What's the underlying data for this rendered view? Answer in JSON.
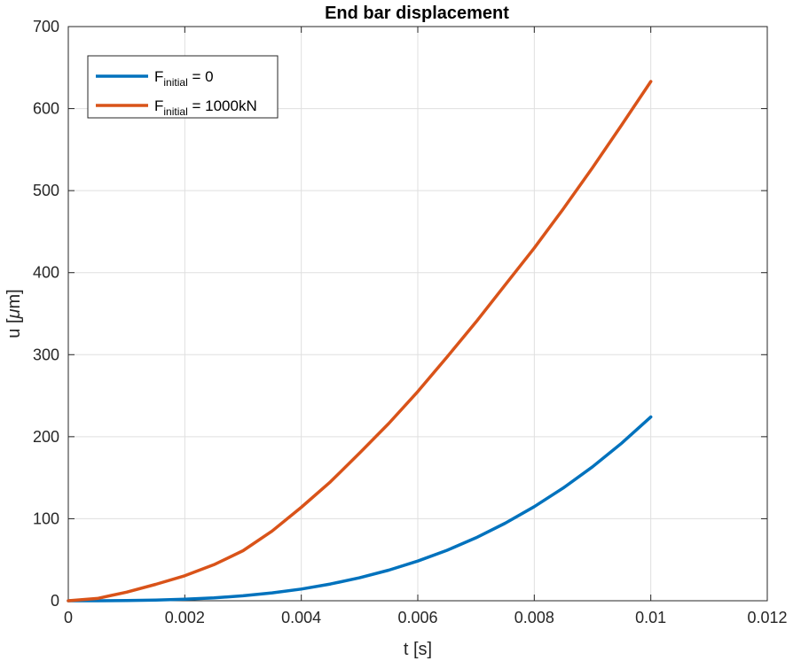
{
  "chart_data": {
    "type": "line",
    "title": "End bar displacement",
    "xlabel": "t [s]",
    "ylabel_prefix": "u [",
    "ylabel_mu": "μ",
    "ylabel_suffix": "m]",
    "xlim": [
      0,
      0.012
    ],
    "ylim": [
      0,
      700
    ],
    "xticks": [
      0,
      0.002,
      0.004,
      0.006,
      0.008,
      0.01,
      0.012
    ],
    "xtick_labels": [
      "0",
      "0.002",
      "0.004",
      "0.006",
      "0.008",
      "0.01",
      "0.012"
    ],
    "yticks": [
      0,
      100,
      200,
      300,
      400,
      500,
      600,
      700
    ],
    "ytick_labels": [
      "0",
      "100",
      "200",
      "300",
      "400",
      "500",
      "600",
      "700"
    ],
    "grid": true,
    "legend_position": "top-left",
    "x": [
      0,
      0.0005,
      0.001,
      0.0015,
      0.002,
      0.0025,
      0.003,
      0.0035,
      0.004,
      0.0045,
      0.005,
      0.0055,
      0.006,
      0.0065,
      0.007,
      0.0075,
      0.008,
      0.0085,
      0.009,
      0.0095,
      0.01
    ],
    "series": [
      {
        "name_main": "F",
        "name_sub": "initial",
        "name_rest": " = 0",
        "color": "#0072BD",
        "values": [
          0,
          0.03,
          0.22,
          0.76,
          1.8,
          3.5,
          6.0,
          9.6,
          14.3,
          20.4,
          28.0,
          37.3,
          48.4,
          61.5,
          76.8,
          94.5,
          114.7,
          137.6,
          163.3,
          192.1,
          224
        ]
      },
      {
        "name_main": "F",
        "name_sub": "initial",
        "name_rest": " = 1000kN",
        "color": "#D95319",
        "values": [
          0,
          2.8,
          10.5,
          20.0,
          30.5,
          44.0,
          61.0,
          85.0,
          114.0,
          145.0,
          180.0,
          216.0,
          255.0,
          297.0,
          340.0,
          385.0,
          430.0,
          478.0,
          528.0,
          580.0,
          633.0
        ]
      }
    ]
  }
}
